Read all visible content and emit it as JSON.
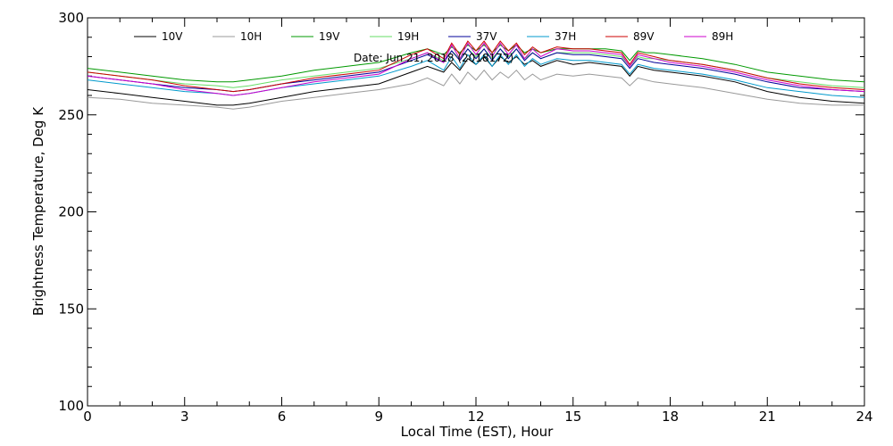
{
  "chart_data": {
    "type": "line",
    "title": "",
    "xlabel": "Local Time (EST), Hour",
    "ylabel": "Brightness Temperature, Deg  K",
    "xlim": [
      0,
      24
    ],
    "ylim": [
      100,
      300
    ],
    "x_ticks": [
      0,
      3,
      6,
      9,
      12,
      15,
      18,
      21,
      24
    ],
    "y_ticks": [
      100,
      150,
      200,
      250,
      300
    ],
    "grid": false,
    "legend_placement": "top",
    "annotation": "Date: Jun 21, 2018 (2018172)",
    "x": [
      0,
      1,
      2,
      3,
      4,
      4.5,
      5,
      6,
      7,
      8,
      9,
      10,
      10.5,
      11,
      11.25,
      11.5,
      11.75,
      12,
      12.25,
      12.5,
      12.75,
      13,
      13.25,
      13.5,
      13.75,
      14,
      14.5,
      15,
      15.5,
      16,
      16.5,
      16.75,
      17,
      17.25,
      17.5,
      18,
      19,
      20,
      21,
      22,
      23,
      24
    ],
    "series": [
      {
        "name": "10V",
        "color": "#000000",
        "values": [
          263,
          261,
          259,
          257,
          255,
          255,
          256,
          259,
          262,
          264,
          266,
          272,
          275,
          272,
          277,
          273,
          279,
          276,
          280,
          275,
          280,
          277,
          280,
          276,
          278,
          275,
          278,
          276,
          277,
          276,
          275,
          270,
          275,
          274,
          273,
          272,
          270,
          267,
          262,
          259,
          257,
          256
        ]
      },
      {
        "name": "10H",
        "color": "#999999",
        "values": [
          259,
          258,
          256,
          255,
          254,
          253,
          254,
          257,
          259,
          261,
          263,
          266,
          269,
          265,
          271,
          266,
          272,
          268,
          273,
          268,
          272,
          269,
          273,
          268,
          271,
          268,
          271,
          270,
          271,
          270,
          269,
          265,
          269,
          268,
          267,
          266,
          264,
          261,
          258,
          256,
          255,
          255
        ]
      },
      {
        "name": "19V",
        "color": "#009900",
        "values": [
          274,
          272,
          270,
          268,
          267,
          267,
          268,
          270,
          273,
          275,
          277,
          282,
          284,
          281,
          285,
          282,
          286,
          283,
          286,
          282,
          286,
          283,
          286,
          282,
          284,
          282,
          284,
          284,
          284,
          284,
          283,
          278,
          283,
          282,
          282,
          281,
          279,
          276,
          272,
          270,
          268,
          267
        ]
      },
      {
        "name": "19H",
        "color": "#66dd66",
        "values": [
          272,
          270,
          268,
          266,
          265,
          264,
          265,
          268,
          270,
          272,
          274,
          279,
          282,
          278,
          283,
          279,
          284,
          280,
          284,
          279,
          284,
          280,
          284,
          279,
          282,
          279,
          282,
          282,
          282,
          281,
          280,
          275,
          280,
          279,
          279,
          278,
          276,
          273,
          269,
          267,
          265,
          264
        ]
      },
      {
        "name": "37V",
        "color": "#000099",
        "values": [
          270,
          268,
          266,
          264,
          263,
          262,
          263,
          266,
          268,
          270,
          272,
          278,
          281,
          277,
          283,
          278,
          284,
          279,
          284,
          278,
          284,
          279,
          284,
          278,
          282,
          279,
          282,
          281,
          281,
          280,
          279,
          274,
          279,
          278,
          277,
          276,
          274,
          271,
          267,
          264,
          263,
          262
        ]
      },
      {
        "name": "37H",
        "color": "#0099cc",
        "values": [
          268,
          266,
          264,
          262,
          261,
          260,
          261,
          264,
          266,
          268,
          270,
          275,
          278,
          273,
          280,
          274,
          281,
          276,
          281,
          275,
          281,
          276,
          281,
          275,
          279,
          276,
          279,
          278,
          278,
          277,
          276,
          271,
          276,
          275,
          274,
          273,
          271,
          268,
          264,
          262,
          260,
          259
        ]
      },
      {
        "name": "89V",
        "color": "#cc0000",
        "values": [
          272,
          270,
          268,
          265,
          263,
          262,
          263,
          266,
          269,
          271,
          273,
          281,
          284,
          279,
          287,
          281,
          288,
          283,
          288,
          282,
          288,
          283,
          287,
          281,
          285,
          282,
          285,
          284,
          284,
          283,
          282,
          276,
          282,
          281,
          280,
          278,
          276,
          273,
          269,
          266,
          264,
          263
        ]
      },
      {
        "name": "89H",
        "color": "#cc00cc",
        "values": [
          270,
          268,
          266,
          263,
          261,
          260,
          261,
          264,
          267,
          269,
          271,
          279,
          282,
          277,
          286,
          279,
          287,
          281,
          287,
          280,
          287,
          281,
          286,
          279,
          284,
          280,
          284,
          283,
          283,
          282,
          281,
          275,
          281,
          280,
          279,
          277,
          275,
          272,
          268,
          265,
          263,
          262
        ]
      }
    ]
  }
}
